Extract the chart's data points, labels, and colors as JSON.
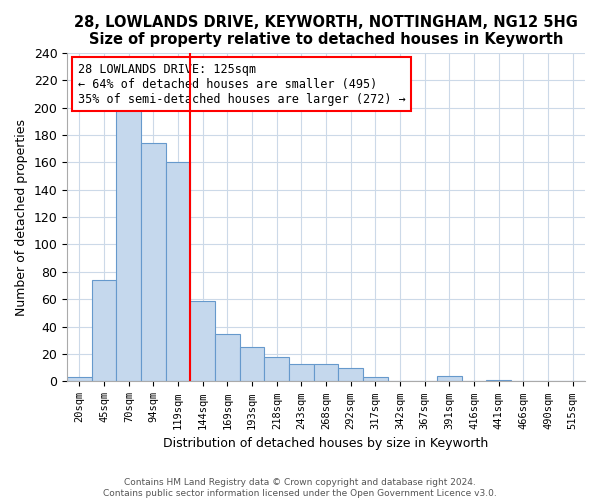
{
  "title": "28, LOWLANDS DRIVE, KEYWORTH, NOTTINGHAM, NG12 5HG",
  "subtitle": "Size of property relative to detached houses in Keyworth",
  "xlabel": "Distribution of detached houses by size in Keyworth",
  "ylabel": "Number of detached properties",
  "bar_labels": [
    "20sqm",
    "45sqm",
    "70sqm",
    "94sqm",
    "119sqm",
    "144sqm",
    "169sqm",
    "193sqm",
    "218sqm",
    "243sqm",
    "268sqm",
    "292sqm",
    "317sqm",
    "342sqm",
    "367sqm",
    "391sqm",
    "416sqm",
    "441sqm",
    "466sqm",
    "490sqm",
    "515sqm"
  ],
  "bar_values": [
    3,
    74,
    200,
    174,
    160,
    59,
    35,
    25,
    18,
    13,
    13,
    10,
    3,
    0,
    0,
    4,
    0,
    1,
    0,
    0,
    0
  ],
  "bar_color": "#c5d8ed",
  "bar_edge_color": "#6699cc",
  "red_line_index": 4,
  "highlight_line_color": "red",
  "annotation_title": "28 LOWLANDS DRIVE: 125sqm",
  "annotation_line1": "← 64% of detached houses are smaller (495)",
  "annotation_line2": "35% of semi-detached houses are larger (272) →",
  "annotation_box_edge": "red",
  "ylim": [
    0,
    240
  ],
  "yticks": [
    0,
    20,
    40,
    60,
    80,
    100,
    120,
    140,
    160,
    180,
    200,
    220,
    240
  ],
  "footer_line1": "Contains HM Land Registry data © Crown copyright and database right 2024.",
  "footer_line2": "Contains public sector information licensed under the Open Government Licence v3.0.",
  "background_color": "#ffffff",
  "grid_color": "#ccd9e8"
}
